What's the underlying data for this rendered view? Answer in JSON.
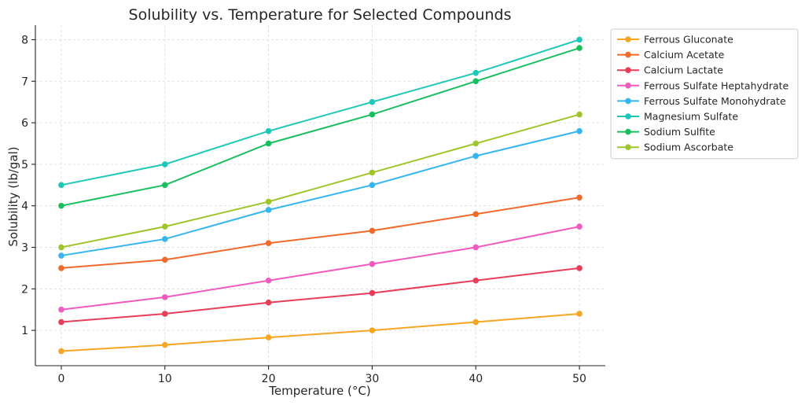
{
  "chart_data": {
    "type": "line",
    "title": "Solubility vs. Temperature for Selected Compounds",
    "xlabel": "Temperature (°C)",
    "ylabel": "Solubility (lb/gal)",
    "x": [
      0,
      10,
      20,
      30,
      40,
      50
    ],
    "xticks": [
      "0",
      "10",
      "20",
      "30",
      "40",
      "50"
    ],
    "yticks": [
      "1",
      "2",
      "3",
      "4",
      "5",
      "6",
      "7",
      "8"
    ],
    "xlim": [
      -2.5,
      52.5
    ],
    "ylim": [
      0.15,
      8.35
    ],
    "grid": true,
    "legend_position": "outside-top-right",
    "series": [
      {
        "name": "Ferrous Gluconate",
        "color": "#f5a623",
        "values": [
          0.5,
          0.65,
          0.83,
          1.0,
          1.2,
          1.4
        ]
      },
      {
        "name": "Calcium Acetate",
        "color": "#ef6a2c",
        "values": [
          2.5,
          2.7,
          3.1,
          3.4,
          3.8,
          4.2
        ]
      },
      {
        "name": "Calcium Lactate",
        "color": "#e83e5a",
        "values": [
          1.2,
          1.4,
          1.67,
          1.9,
          2.2,
          2.5
        ]
      },
      {
        "name": "Ferrous Sulfate Heptahydrate",
        "color": "#f05bbf",
        "values": [
          1.5,
          1.8,
          2.2,
          2.6,
          3.0,
          3.5
        ]
      },
      {
        "name": "Ferrous Sulfate Monohydrate",
        "color": "#35b6f0",
        "values": [
          2.8,
          3.2,
          3.9,
          4.5,
          5.2,
          5.8
        ]
      },
      {
        "name": "Magnesium Sulfate",
        "color": "#1ec8b8",
        "values": [
          4.5,
          5.0,
          5.8,
          6.5,
          7.2,
          8.0
        ]
      },
      {
        "name": "Sodium Sulfite",
        "color": "#19bf5f",
        "values": [
          4.0,
          4.5,
          5.5,
          6.2,
          7.0,
          7.8
        ]
      },
      {
        "name": "Sodium Ascorbate",
        "color": "#a0c52a",
        "values": [
          3.0,
          3.5,
          4.1,
          4.8,
          5.5,
          6.2
        ]
      }
    ]
  }
}
